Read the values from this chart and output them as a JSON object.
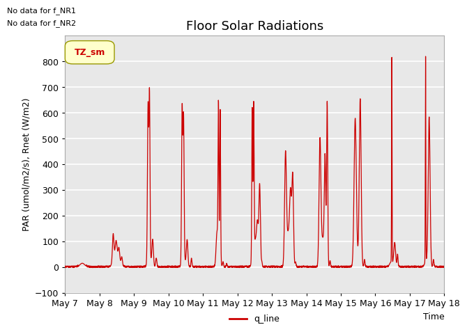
{
  "title": "Floor Solar Radiations",
  "xlabel": "Time",
  "ylabel": "PAR (umol/m2/s), Rnet (W/m2)",
  "ylim": [
    -100,
    900
  ],
  "yticks": [
    -100,
    0,
    100,
    200,
    300,
    400,
    500,
    600,
    700,
    800
  ],
  "xstart": 7.0,
  "xend": 18.0,
  "xtick_positions": [
    7,
    8,
    9,
    10,
    11,
    12,
    13,
    14,
    15,
    16,
    17,
    18
  ],
  "xtick_labels": [
    "May 7",
    "May 8",
    "May 9",
    "May 10",
    "May 11",
    "May 12",
    "May 13",
    "May 14",
    "May 15",
    "May 16",
    "May 17",
    "May 18"
  ],
  "line_color": "#cc0000",
  "line_label": "q_line",
  "legend_box_color": "#ffffcc",
  "legend_box_edge": "#999900",
  "legend_text": "TZ_sm",
  "legend_text_color": "#cc0000",
  "text_no_data_1": "No data for f_NR1",
  "text_no_data_2": "No data for f_NR2",
  "axes_bg": "#e8e8e8",
  "grid_color": "#ffffff",
  "title_fontsize": 13,
  "axis_label_fontsize": 9,
  "tick_fontsize": 9
}
